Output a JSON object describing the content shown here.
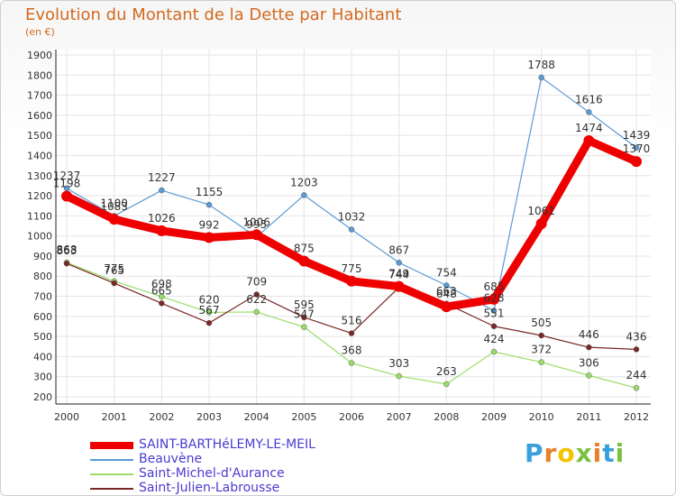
{
  "title": "Evolution du Montant de la Dette par Habitant",
  "subtitle": "(en €)",
  "logo": {
    "text": "Proxiti",
    "letters": [
      "P",
      "r",
      "o",
      "x",
      "i",
      "t",
      "i"
    ],
    "colors": [
      "#3aa0dc",
      "#e8812a",
      "#f3c400",
      "#7ac143",
      "#e8812a",
      "#3aa0dc",
      "#7ac143"
    ]
  },
  "chart_data": {
    "type": "line",
    "title": "Evolution du Montant de la Dette par Habitant",
    "ylabel": "(en €)",
    "x": [
      "2000",
      "2001",
      "2002",
      "2003",
      "2004",
      "2005",
      "2006",
      "2007",
      "2008",
      "2009",
      "2010",
      "2011",
      "2012"
    ],
    "ylim": [
      200,
      1900
    ],
    "yticks": [
      200,
      300,
      400,
      500,
      600,
      700,
      800,
      900,
      1000,
      1100,
      1200,
      1300,
      1400,
      1500,
      1600,
      1700,
      1800,
      1900
    ],
    "grid": true,
    "legend_position": "bottom-left",
    "series": [
      {
        "name": "SAINT-BARTHéLEMY-LE-MEIL",
        "color": "#ee0000",
        "width": "thick",
        "values": [
          1198,
          1083,
          1026,
          992,
          1006,
          875,
          775,
          749,
          648,
          685,
          1061,
          1474,
          1370
        ],
        "labels": [
          "1198",
          "1083",
          "1026",
          "992",
          "1006",
          "875",
          "775",
          "749",
          "648",
          "685",
          "1061",
          "1474",
          "1370"
        ]
      },
      {
        "name": "Beauvène",
        "color": "#5b9bd5",
        "width": "thin",
        "values": [
          1237,
          1100,
          1227,
          1155,
          995,
          1203,
          1032,
          867,
          754,
          628,
          1788,
          1616,
          1439
        ],
        "labels": [
          "1237",
          "1100",
          "1227",
          "1155",
          "995",
          "1203",
          "1032",
          "867",
          "754",
          "628",
          "1788",
          "1616",
          "1439"
        ]
      },
      {
        "name": "Saint-Michel-d'Aurance",
        "color": "#99dd66",
        "width": "thin",
        "values": [
          868,
          775,
          698,
          620,
          622,
          547,
          368,
          303,
          263,
          424,
          372,
          306,
          244
        ],
        "labels": [
          "868",
          "775",
          "698",
          "620",
          "622",
          "547",
          "368",
          "303",
          "263",
          "424",
          "372",
          "306",
          "244"
        ]
      },
      {
        "name": "Saint-Julien-Labrousse",
        "color": "#7a2828",
        "width": "thin",
        "values": [
          863,
          765,
          665,
          567,
          709,
          595,
          516,
          744,
          663,
          551,
          505,
          446,
          436
        ],
        "labels": [
          "863",
          "765",
          "665",
          "567",
          "709",
          "595",
          "516",
          "744",
          "663",
          "551",
          "505",
          "446",
          "436"
        ]
      }
    ]
  }
}
